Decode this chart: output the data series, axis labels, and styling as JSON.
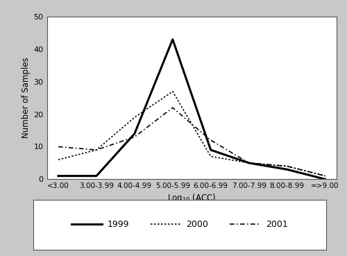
{
  "categories": [
    "<3.00",
    "3.00-3.99",
    "4.00-4.99",
    "5.00-5.99",
    "6.00-6.99",
    "7.00-7.99",
    "8.00-8.99",
    "=>9.00"
  ],
  "series_1999": [
    1,
    1,
    14,
    43,
    9,
    5,
    3,
    0
  ],
  "series_2000": [
    6,
    9,
    19,
    27,
    7,
    5,
    4,
    1
  ],
  "series_2001": [
    10,
    9,
    13,
    22,
    12,
    5,
    4,
    1
  ],
  "ylabel": "Number of Samples",
  "xlabel": "Log$_{10}$ (ACC)",
  "ylim": [
    0,
    50
  ],
  "yticks": [
    0,
    10,
    20,
    30,
    40,
    50
  ],
  "legend_labels": [
    "1999",
    "2000",
    "2001"
  ],
  "outer_bg": "#c8c8c8",
  "plot_bg": "#ffffff",
  "line_color": "#000000"
}
